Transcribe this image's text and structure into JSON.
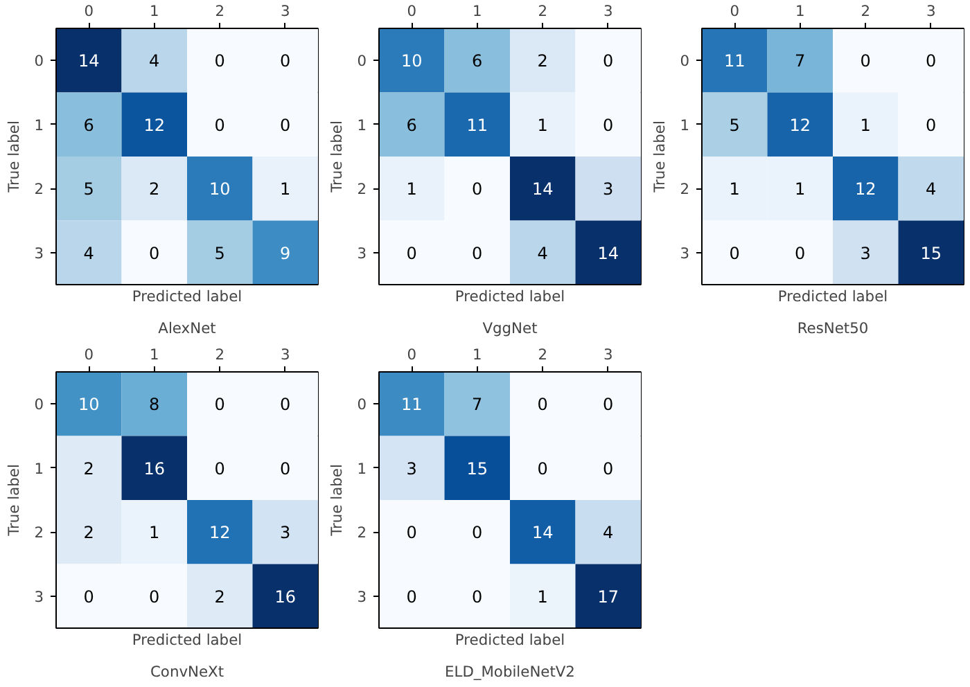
{
  "chart_data": [
    {
      "type": "heatmap",
      "title": "AlexNet",
      "xlabel": "Predicted label",
      "ylabel": "True label",
      "categories": [
        "0",
        "1",
        "2",
        "3"
      ],
      "y_categories": [
        "0",
        "1",
        "2",
        "3"
      ],
      "data_labels": true,
      "grid": false,
      "cells": [
        [
          14,
          4,
          0,
          0
        ],
        [
          6,
          12,
          0,
          0
        ],
        [
          5,
          2,
          10,
          1
        ],
        [
          4,
          0,
          5,
          9
        ]
      ]
    },
    {
      "type": "heatmap",
      "title": "VggNet",
      "xlabel": "Predicted label",
      "ylabel": "True label",
      "categories": [
        "0",
        "1",
        "2",
        "3"
      ],
      "y_categories": [
        "0",
        "1",
        "2",
        "3"
      ],
      "data_labels": true,
      "grid": false,
      "cells": [
        [
          10,
          6,
          2,
          0
        ],
        [
          6,
          11,
          1,
          0
        ],
        [
          1,
          0,
          14,
          3
        ],
        [
          0,
          0,
          4,
          14
        ]
      ]
    },
    {
      "type": "heatmap",
      "title": "ResNet50",
      "xlabel": "Predicted label",
      "ylabel": "True label",
      "categories": [
        "0",
        "1",
        "2",
        "3"
      ],
      "y_categories": [
        "0",
        "1",
        "2",
        "3"
      ],
      "data_labels": true,
      "grid": false,
      "cells": [
        [
          11,
          7,
          0,
          0
        ],
        [
          5,
          12,
          1,
          0
        ],
        [
          1,
          1,
          12,
          4
        ],
        [
          0,
          0,
          3,
          15
        ]
      ]
    },
    {
      "type": "heatmap",
      "title": "ConvNeXt",
      "xlabel": "Predicted label",
      "ylabel": "True label",
      "categories": [
        "0",
        "1",
        "2",
        "3"
      ],
      "y_categories": [
        "0",
        "1",
        "2",
        "3"
      ],
      "data_labels": true,
      "grid": false,
      "cells": [
        [
          10,
          8,
          0,
          0
        ],
        [
          2,
          16,
          0,
          0
        ],
        [
          2,
          1,
          12,
          3
        ],
        [
          0,
          0,
          2,
          16
        ]
      ]
    },
    {
      "type": "heatmap",
      "title": "ELD_MobileNetV2",
      "xlabel": "Predicted label",
      "ylabel": "True label",
      "categories": [
        "0",
        "1",
        "2",
        "3"
      ],
      "y_categories": [
        "0",
        "1",
        "2",
        "3"
      ],
      "data_labels": true,
      "grid": false,
      "cells": [
        [
          11,
          7,
          0,
          0
        ],
        [
          3,
          15,
          0,
          0
        ],
        [
          0,
          0,
          14,
          4
        ],
        [
          0,
          0,
          1,
          17
        ]
      ]
    }
  ]
}
